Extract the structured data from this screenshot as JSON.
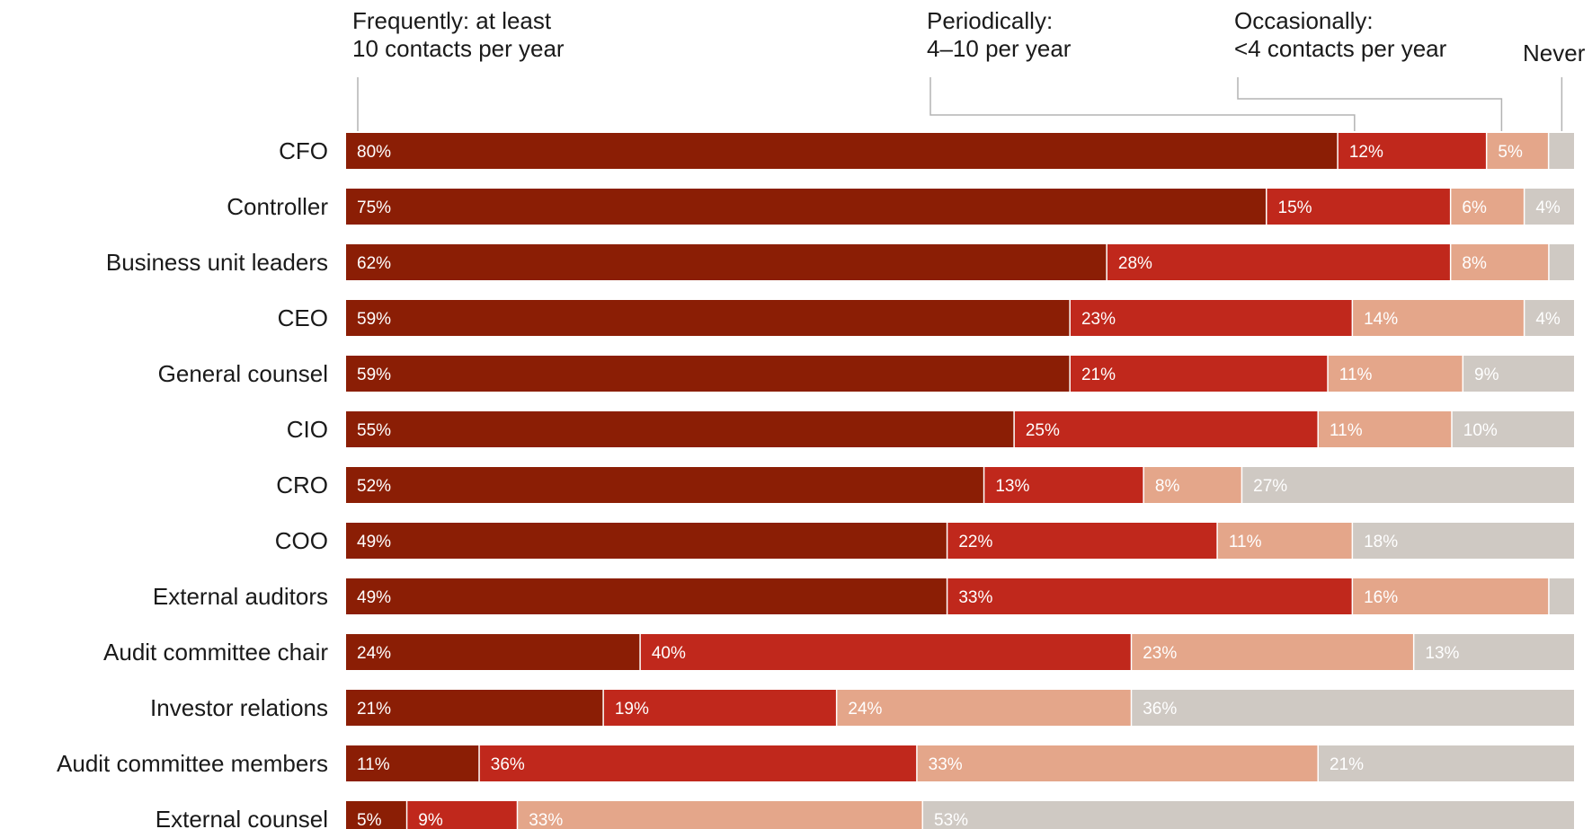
{
  "chart_data": {
    "type": "bar",
    "orientation": "horizontal",
    "stacked": true,
    "categories": [
      "CFO",
      "Controller",
      "Business unit leaders",
      "CEO",
      "General counsel",
      "CIO",
      "CRO",
      "COO",
      "External auditors",
      "Audit committee chair",
      "Investor relations",
      "Audit committee members",
      "External counsel"
    ],
    "series": [
      {
        "name": "Frequently: at least 10 contacts per year",
        "legend_lines": [
          "Frequently: at least",
          "10 contacts per year"
        ],
        "color": "#8b1e05",
        "values": [
          80,
          75,
          62,
          59,
          59,
          55,
          52,
          49,
          49,
          24,
          21,
          11,
          5
        ],
        "labels": [
          "80%",
          "75%",
          "62%",
          "59%",
          "59%",
          "55%",
          "52%",
          "49%",
          "49%",
          "24%",
          "21%",
          "11%",
          "5%"
        ]
      },
      {
        "name": "Periodically: 4–10 per year",
        "legend_lines": [
          "Periodically:",
          "4–10 per year"
        ],
        "color": "#c0281c",
        "values": [
          12,
          15,
          28,
          23,
          21,
          25,
          13,
          22,
          33,
          40,
          19,
          36,
          9
        ],
        "labels": [
          "12%",
          "15%",
          "28%",
          "23%",
          "21%",
          "25%",
          "13%",
          "22%",
          "33%",
          "40%",
          "19%",
          "36%",
          "9%"
        ]
      },
      {
        "name": "Occasionally: <4 contacts per year",
        "legend_lines": [
          "Occasionally:",
          "<4 contacts per year"
        ],
        "color": "#e4a68a",
        "values": [
          5,
          6,
          8,
          14,
          11,
          11,
          8,
          11,
          16,
          23,
          24,
          33,
          33
        ],
        "labels": [
          "5%",
          "6%",
          "8%",
          "14%",
          "11%",
          "11%",
          "8%",
          "11%",
          "16%",
          "23%",
          "24%",
          "33%",
          "33%"
        ]
      },
      {
        "name": "Never",
        "legend_lines": [
          "Never"
        ],
        "color": "#cfc9c3",
        "values": [
          2,
          4,
          2,
          4,
          9,
          10,
          27,
          18,
          2,
          13,
          36,
          21,
          53
        ],
        "labels": [
          "",
          "4%",
          "",
          "4%",
          "9%",
          "10%",
          "27%",
          "18%",
          "",
          "13%",
          "36%",
          "21%",
          "53%"
        ]
      }
    ],
    "xlim": [
      0,
      100
    ],
    "grid": false,
    "legend": "top"
  }
}
